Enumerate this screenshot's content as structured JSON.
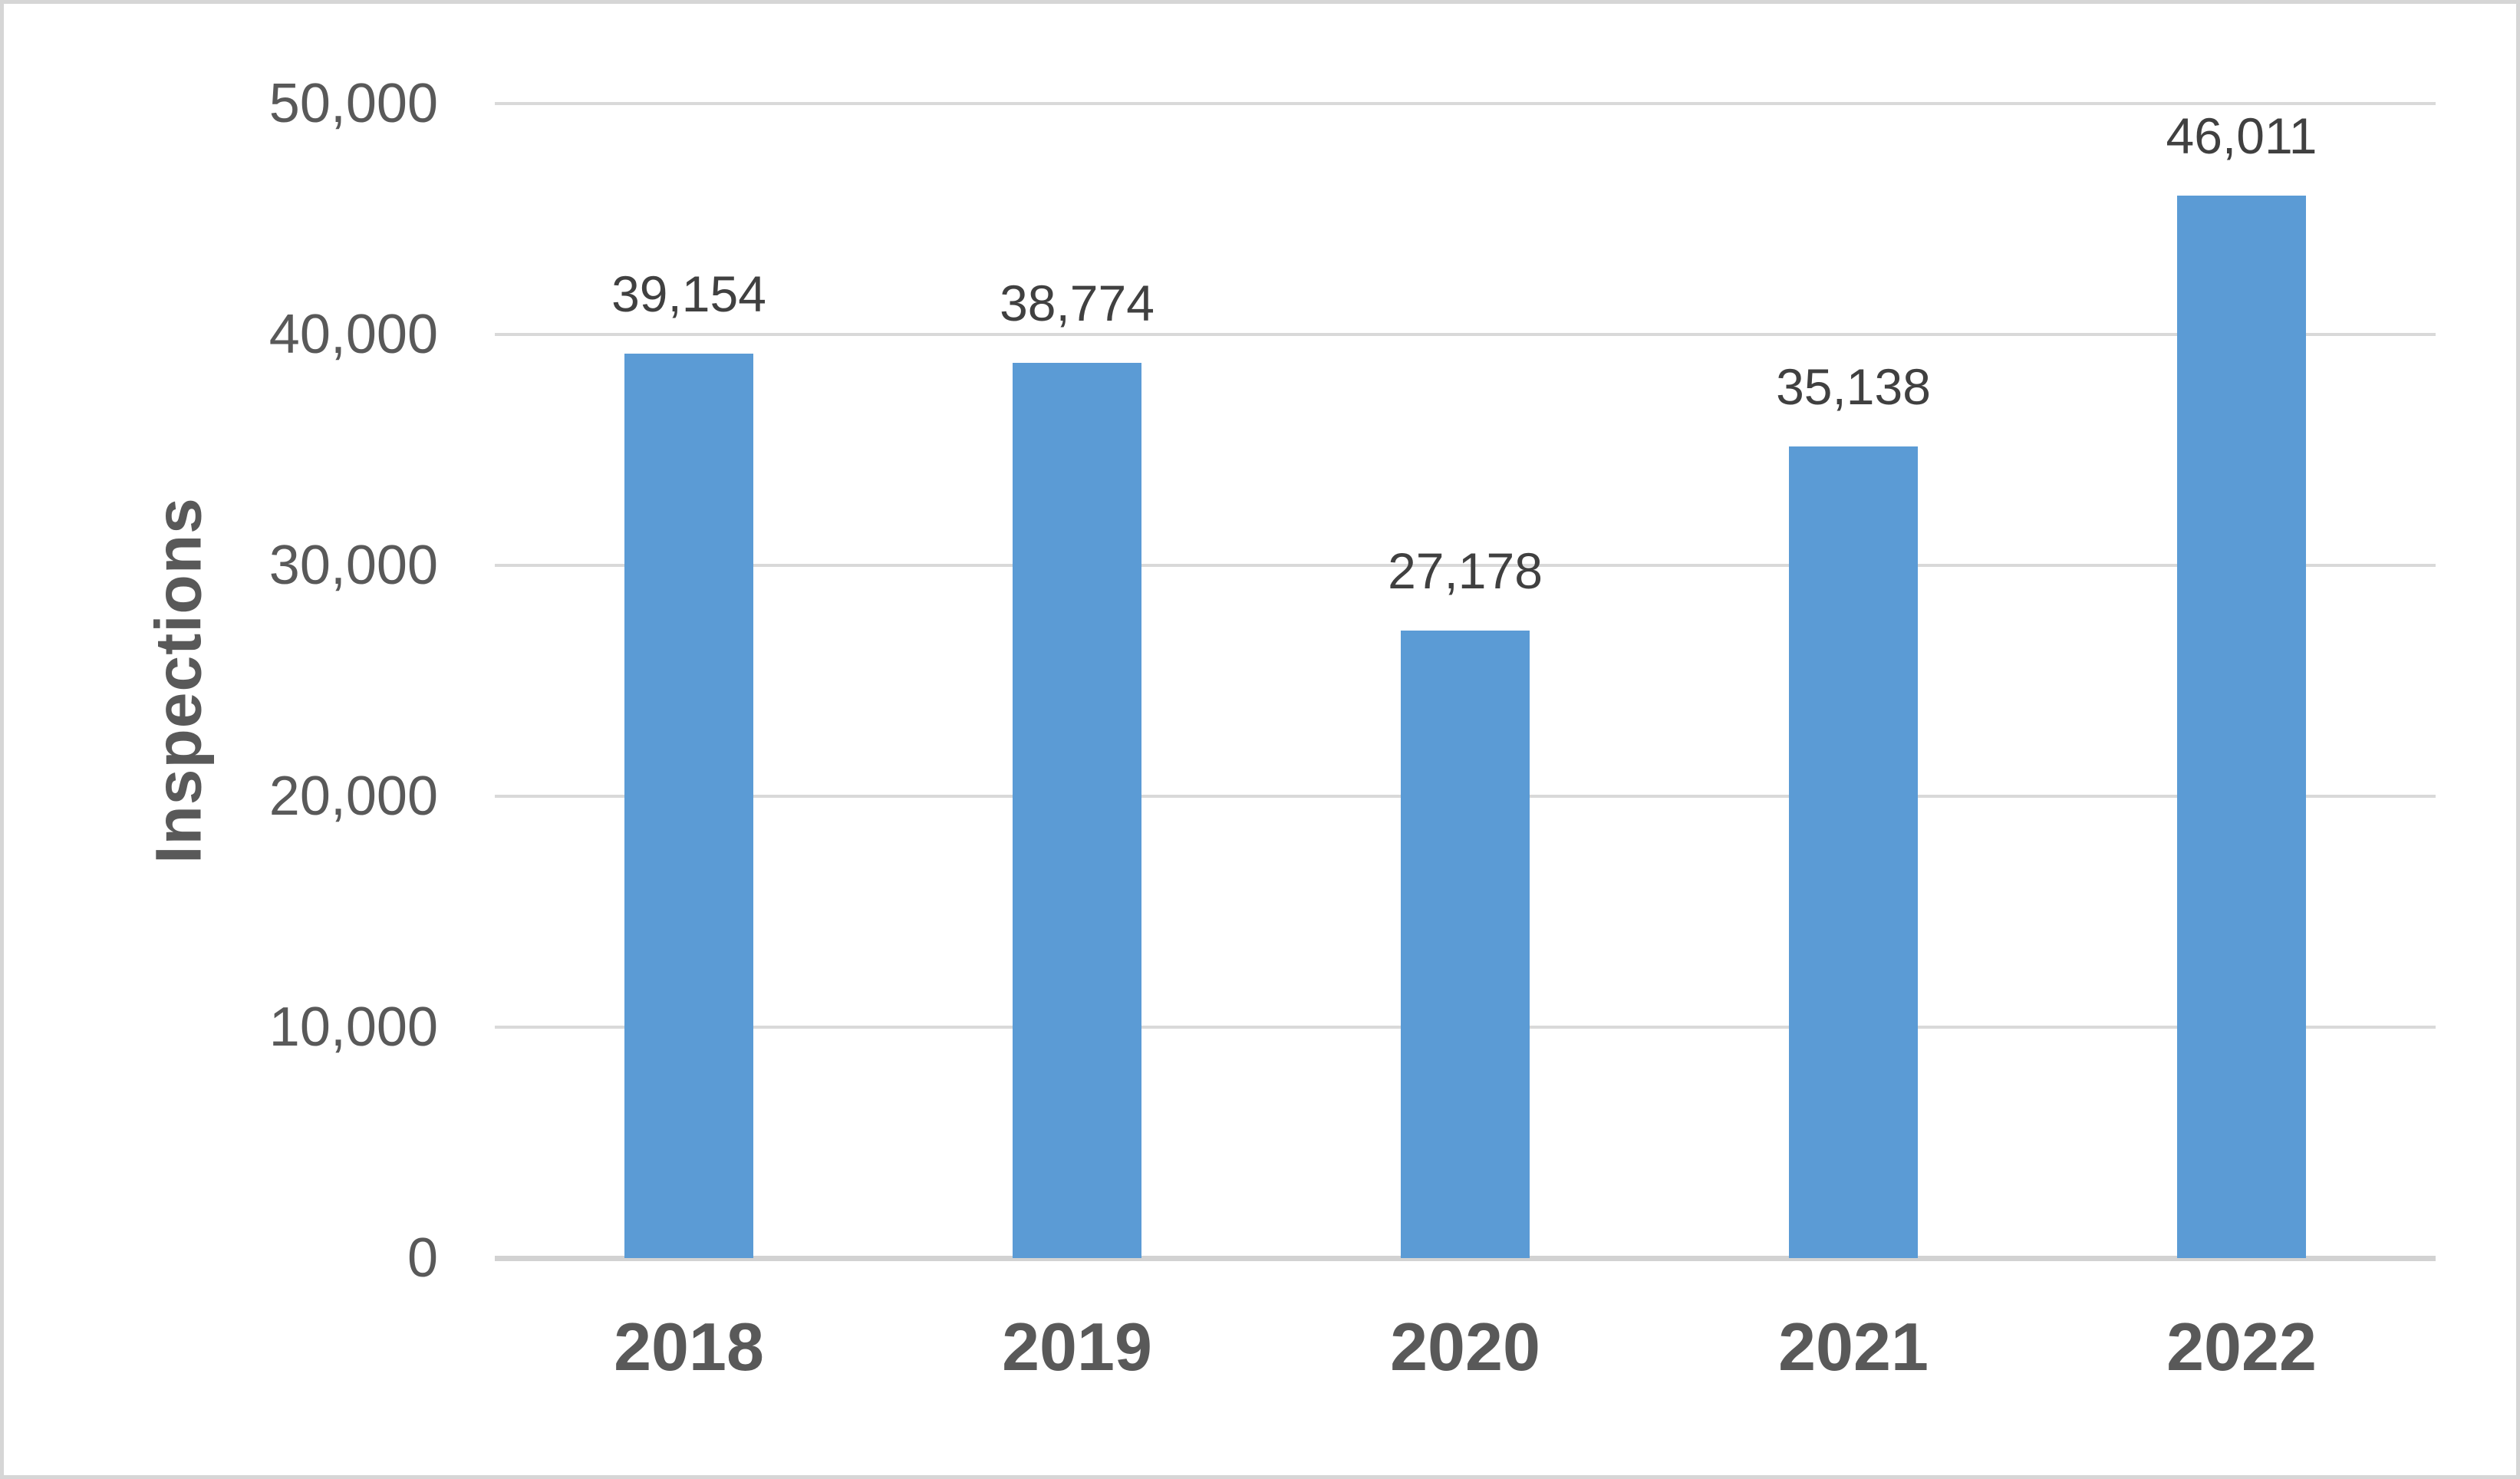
{
  "figure": {
    "background_color": "#ffffff",
    "border_color": "#d6d6d6"
  },
  "chart_data": {
    "type": "bar",
    "title": "",
    "xlabel": "",
    "ylabel": "Inspections",
    "categories": [
      "2018",
      "2019",
      "2020",
      "2021",
      "2022"
    ],
    "values": [
      39154,
      38774,
      27178,
      35138,
      46011
    ],
    "data_labels": [
      "39,154",
      "38,774",
      "27,178",
      "35,138",
      "46,011"
    ],
    "ylim": [
      0,
      50000
    ],
    "yticks": [
      0,
      10000,
      20000,
      30000,
      40000,
      50000
    ],
    "ytick_labels": [
      "0",
      "10,000",
      "20,000",
      "30,000",
      "40,000",
      "50,000"
    ],
    "grid": true,
    "legend_position": "none",
    "bar_color": "#5b9bd5",
    "gridline_color": "#d9d9d9",
    "axis_line_color": "#d2d2d2",
    "tick_label_color": "#595959",
    "data_label_color": "#404040",
    "category_label_color": "#595959"
  }
}
